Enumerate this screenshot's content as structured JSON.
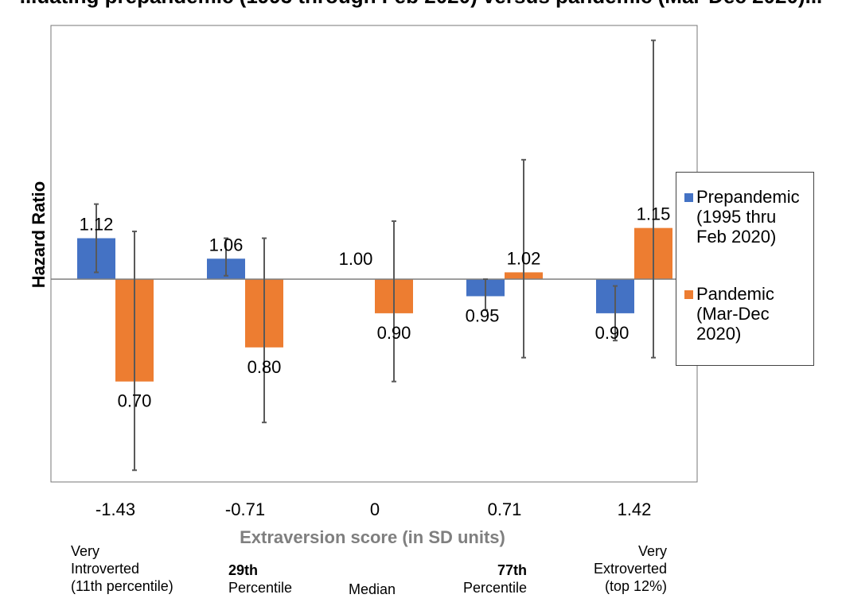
{
  "chart_data": {
    "type": "bar",
    "title": "...uating prepandemic (1995 through Feb 2020) versus pandemic (Mar-Dec 2020)...",
    "ylabel": "Hazard Ratio",
    "xlabel": "Extraversion score (in SD units)",
    "baseline": 1.0,
    "categories": [
      "-1.43",
      "-0.71",
      "0",
      "0.71",
      "1.42"
    ],
    "series": [
      {
        "name": "Prepandemic (1995 thru Feb 2020)",
        "color": "#4472C4",
        "values": [
          1.12,
          1.06,
          1.0,
          0.95,
          0.9
        ],
        "labels": [
          "1.12",
          "1.06",
          "1.00",
          "0.95",
          "0.90"
        ],
        "ci_low": [
          1.02,
          1.01,
          1.0,
          0.91,
          0.82
        ],
        "ci_high": [
          1.22,
          1.12,
          1.0,
          1.0,
          0.98
        ]
      },
      {
        "name": "Pandemic (Mar-Dec 2020)",
        "color": "#ED7D31",
        "values": [
          0.7,
          0.8,
          0.9,
          1.02,
          1.15
        ],
        "labels": [
          "0.70",
          "0.80",
          "0.90",
          "1.02",
          "1.15"
        ],
        "ci_low": [
          0.44,
          0.58,
          0.7,
          0.77,
          0.77
        ],
        "ci_high": [
          1.14,
          1.12,
          1.17,
          1.35,
          1.7
        ]
      }
    ]
  },
  "legend": {
    "items": [
      {
        "label": "Prepandemic (1995 thru Feb 2020)",
        "line1": "Prepandemic",
        "line2": "(1995 thru",
        "line3": "Feb 2020)"
      },
      {
        "label": "Pandemic (Mar-Dec 2020)",
        "line1": "Pandemic",
        "line2": "(Mar-Dec",
        "line3": "2020)"
      }
    ]
  },
  "annotations": {
    "cat0": [
      "Very",
      "Introverted",
      "(11th percentile)"
    ],
    "cat1_sup": "29th",
    "cat1_rest": "Percentile",
    "cat2": "Median",
    "cat3_sup": "77th",
    "cat3_rest": "Percentile",
    "cat4": [
      "Very",
      "Extroverted",
      "(top 12%)"
    ]
  }
}
